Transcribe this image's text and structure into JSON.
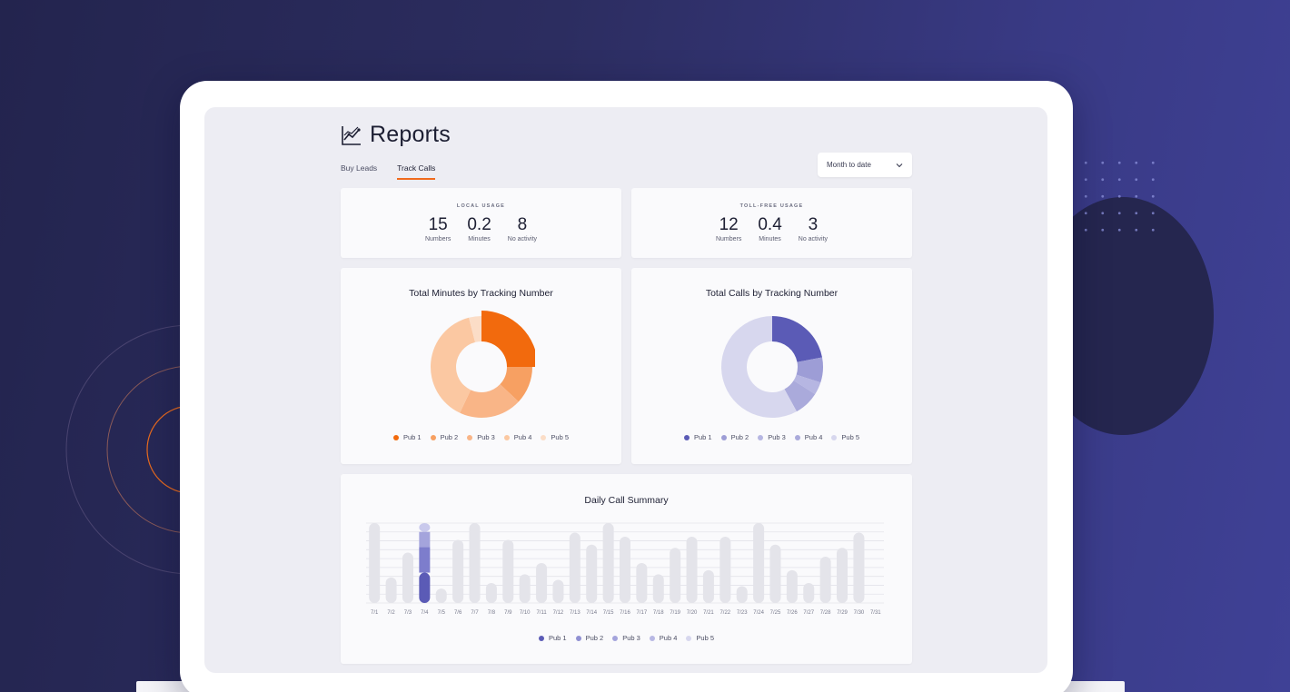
{
  "page": {
    "title": "Reports",
    "title_icon": "line-chart-icon"
  },
  "tabs": [
    {
      "label": "Buy Leads",
      "active": false
    },
    {
      "label": "Track Calls",
      "active": true
    }
  ],
  "date_filter": {
    "selected": "Month to date",
    "icon": "chevron-down-icon"
  },
  "local_usage": {
    "title": "LOCAL USAGE",
    "stats": [
      {
        "value": "15",
        "label": "Numbers"
      },
      {
        "value": "0.2",
        "label": "Minutes"
      },
      {
        "value": "8",
        "label": "No activity"
      }
    ]
  },
  "tollfree_usage": {
    "title": "TOLL-FREE USAGE",
    "stats": [
      {
        "value": "12",
        "label": "Numbers"
      },
      {
        "value": "0.4",
        "label": "Minutes"
      },
      {
        "value": "3",
        "label": "No activity"
      }
    ]
  },
  "colors": {
    "accent_orange": "#f26a0d",
    "accent_purple": "#5b5bb6"
  },
  "chart_data": [
    {
      "type": "pie",
      "title": "Total Minutes by Tracking Number",
      "categories": [
        "Pub 1",
        "Pub 2",
        "Pub 3",
        "Pub 4",
        "Pub 5"
      ],
      "values": [
        25,
        12,
        20,
        39,
        4
      ],
      "colors": [
        "#f26a0d",
        "#f7a062",
        "#f9b587",
        "#fbc8a2",
        "#fbddc7"
      ]
    },
    {
      "type": "pie",
      "title": "Total Calls by Tracking Number",
      "categories": [
        "Pub 1",
        "Pub 2",
        "Pub 3",
        "Pub 4",
        "Pub 5"
      ],
      "values": [
        22,
        8,
        4,
        8,
        58
      ],
      "colors": [
        "#5b5bb6",
        "#9d9dd6",
        "#b6b6e2",
        "#aaaadb",
        "#d7d7ee"
      ]
    },
    {
      "type": "bar",
      "title": "Daily Call Summary",
      "categories": [
        "7/1",
        "7/2",
        "7/3",
        "7/4",
        "7/5",
        "7/6",
        "7/7",
        "7/8",
        "7/9",
        "7/10",
        "7/11",
        "7/12",
        "7/13",
        "7/14",
        "7/15",
        "7/16",
        "7/17",
        "7/18",
        "7/19",
        "7/20",
        "7/21",
        "7/22",
        "7/23",
        "7/24",
        "7/25",
        "7/26",
        "7/27",
        "7/28",
        "7/29",
        "7/30",
        "7/31"
      ],
      "values": [
        10,
        3.2,
        6.3,
        10,
        1.8,
        7.9,
        10,
        2.5,
        7.9,
        3.6,
        5,
        2.9,
        8.8,
        7.3,
        10,
        8.3,
        5,
        3.6,
        6.9,
        8.3,
        4.1,
        8.3,
        2.1,
        10,
        7.3,
        4.1,
        2.5,
        5.8,
        6.9,
        8.8,
        0
      ],
      "highlight": {
        "category": "7/4",
        "series": [
          {
            "name": "Pub 1",
            "value": 3.8
          },
          {
            "name": "Pub 2",
            "value": 3.2
          },
          {
            "name": "Pub 3",
            "value": 1.9
          },
          {
            "name": "Pub 4",
            "value": 1.1
          }
        ]
      },
      "ylim": [
        0,
        10
      ],
      "legend": [
        "Pub 1",
        "Pub 2",
        "Pub 3",
        "Pub 4",
        "Pub 5"
      ],
      "legend_colors": [
        "#5b5bb6",
        "#9090d2",
        "#a4a4dc",
        "#b8b8e4",
        "#d7d7ee"
      ]
    }
  ]
}
